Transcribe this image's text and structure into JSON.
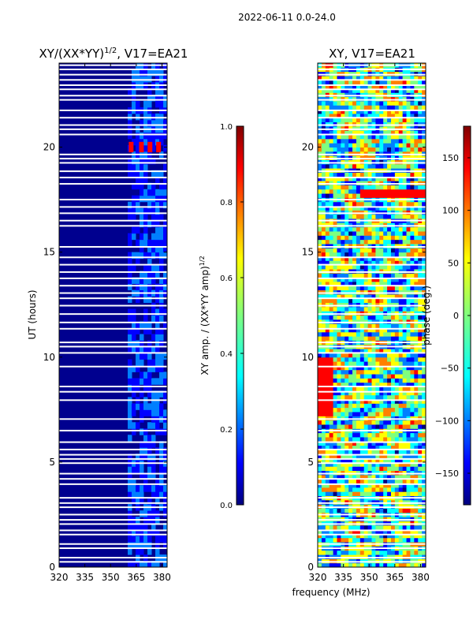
{
  "suptitle": "2022-06-11 0.0-24.0",
  "xlabel_shared": "frequency (MHz)",
  "colors": {
    "background_band": "#00008f",
    "gap": "#ffffff",
    "jet": [
      "#00007f",
      "#0000ff",
      "#007fff",
      "#00ffff",
      "#7fff7f",
      "#ffff00",
      "#ff7f00",
      "#ff0000",
      "#7f0000"
    ]
  },
  "chart_data": [
    {
      "type": "heatmap",
      "name": "amplitude-ratio",
      "title_main": "XY/(XX*YY)",
      "title_sup": "1/2",
      "title_tail": ", V17=EA21",
      "xlabel": "",
      "ylabel": "UT (hours)",
      "xlim": [
        320,
        383
      ],
      "ylim": [
        0,
        24
      ],
      "xticks": [
        320,
        335,
        350,
        365,
        380
      ],
      "yticks": [
        0,
        5,
        10,
        15,
        20
      ],
      "gap_hours": [
        0.25,
        0.45,
        0.9,
        1.1,
        1.55,
        1.75,
        2.05,
        2.25,
        2.5,
        2.85,
        3.05,
        3.3,
        3.95,
        4.2,
        4.45,
        4.95,
        5.15,
        5.35,
        5.6,
        5.95,
        6.5,
        7.05,
        7.95,
        8.35,
        8.6,
        9.55,
        10.2,
        10.5,
        10.7,
        11.35,
        11.65,
        12.05,
        12.45,
        12.8,
        13.05,
        13.4,
        13.75,
        14.05,
        14.4,
        14.75,
        15.25,
        16.25,
        16.5,
        16.85,
        17.15,
        17.5,
        18.25,
        18.55,
        18.85,
        19.25,
        19.45,
        19.65,
        20.6,
        20.85,
        21.05,
        21.4,
        21.75,
        22.25,
        22.45,
        22.75,
        22.95,
        23.2,
        23.45,
        23.7,
        23.9
      ],
      "active_band_mhz": [
        360,
        383
      ],
      "hot_spot": {
        "ut": 20.0,
        "channels_mhz": [
          362,
          368,
          373,
          378
        ],
        "value": 0.9
      }
    },
    {
      "type": "heatmap",
      "name": "xy-phase",
      "title_main": "XY, V17=EA21",
      "xlabel": "frequency (MHz)",
      "ylabel": "",
      "xlim": [
        320,
        383
      ],
      "ylim": [
        0,
        24
      ],
      "xticks": [
        320,
        335,
        350,
        365,
        380
      ],
      "yticks": [
        0,
        5,
        10,
        15,
        20
      ]
    }
  ],
  "colorbars": [
    {
      "name": "amplitude-colorbar",
      "label": "XY amp. / (XX*YY amp)",
      "label_sup": "1/2",
      "range": [
        0.0,
        1.0
      ],
      "ticks": [
        "0.0",
        "0.2",
        "0.4",
        "0.6",
        "0.8",
        "1.0"
      ]
    },
    {
      "name": "phase-colorbar",
      "label": "phase (deg.)",
      "range": [
        -180,
        180
      ],
      "ticks": [
        "−150",
        "−100",
        "−50",
        "0",
        "50",
        "100",
        "150"
      ],
      "tick_values": [
        -150,
        -100,
        -50,
        0,
        50,
        100,
        150
      ]
    }
  ]
}
